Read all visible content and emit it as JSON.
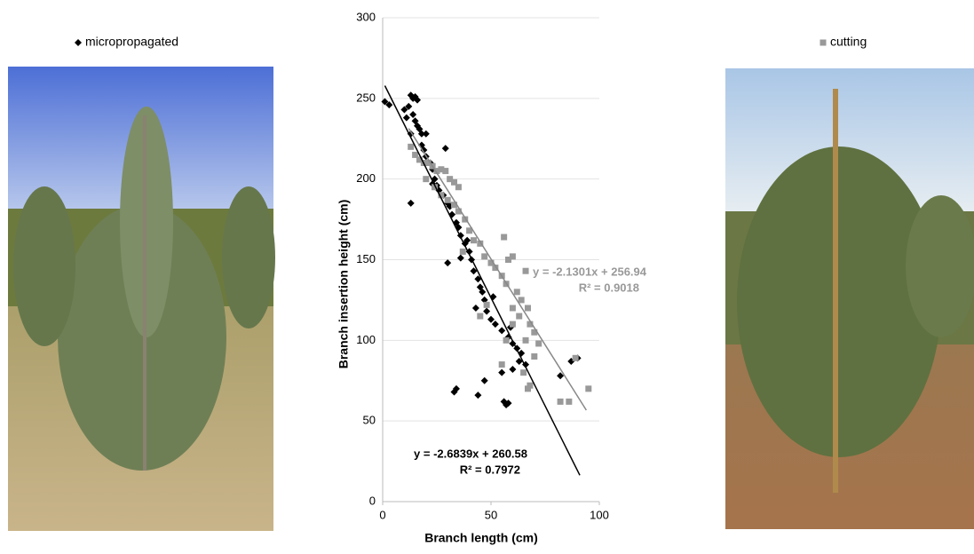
{
  "chart_data": {
    "type": "scatter",
    "xlabel": "Branch length (cm)",
    "ylabel": "Branch insertion height (cm)",
    "xlim": [
      0,
      100
    ],
    "xticks": [
      0,
      50,
      100
    ],
    "ylim": [
      0,
      300
    ],
    "yticks": [
      0,
      50,
      100,
      150,
      200,
      250,
      300
    ],
    "grid": true,
    "series": [
      {
        "name": "micropropagated",
        "color": "#000000",
        "marker": "diamond",
        "x": [
          1,
          3,
          10,
          13,
          14,
          15,
          16,
          12,
          14,
          15,
          16,
          17,
          18,
          13,
          20,
          11,
          18,
          19,
          20,
          22,
          23,
          24,
          25,
          26,
          28,
          30,
          31,
          32,
          34,
          35,
          36,
          38,
          40,
          41,
          30,
          42,
          44,
          45,
          46,
          47,
          43,
          48,
          50,
          52,
          55,
          58,
          60,
          62,
          64,
          66,
          60,
          55,
          33,
          34,
          44,
          47,
          56,
          57,
          58,
          63,
          87,
          90,
          82,
          13,
          29,
          23,
          36,
          39,
          51,
          59
        ],
        "values": [
          248,
          246,
          243,
          252,
          250,
          251,
          249,
          245,
          240,
          236,
          233,
          231,
          228,
          228,
          228,
          238,
          221,
          218,
          214,
          210,
          206,
          200,
          196,
          193,
          190,
          185,
          183,
          178,
          173,
          170,
          165,
          160,
          155,
          150,
          148,
          143,
          138,
          133,
          130,
          125,
          120,
          118,
          113,
          110,
          106,
          102,
          98,
          95,
          92,
          85,
          82,
          80,
          68,
          70,
          66,
          75,
          62,
          60,
          61,
          87,
          87,
          89,
          78,
          185,
          219,
          197,
          151,
          162,
          127,
          108
        ],
        "trendline": {
          "slope": -2.6839,
          "intercept": 260.58,
          "x_start": 1,
          "x_end": 91
        },
        "equation": "y = -2.6839x + 260.58",
        "r2": "R² = 0.7972"
      },
      {
        "name": "cutting",
        "color": "#999999",
        "marker": "square",
        "x": [
          13,
          15,
          17,
          19,
          21,
          23,
          25,
          27,
          29,
          31,
          33,
          35,
          20,
          24,
          27,
          30,
          33,
          35,
          38,
          40,
          42,
          45,
          37,
          47,
          50,
          52,
          55,
          57,
          58,
          60,
          56,
          62,
          64,
          66,
          60,
          63,
          67,
          68,
          70,
          66,
          72,
          65,
          68,
          67,
          82,
          86,
          89,
          95,
          55,
          45,
          48,
          70,
          57,
          60
        ],
        "values": [
          220,
          215,
          212,
          210,
          210,
          208,
          205,
          206,
          205,
          200,
          198,
          195,
          200,
          195,
          190,
          187,
          184,
          180,
          175,
          168,
          162,
          160,
          155,
          152,
          148,
          145,
          140,
          135,
          150,
          152,
          164,
          130,
          125,
          143,
          120,
          115,
          120,
          110,
          105,
          100,
          98,
          80,
          72,
          70,
          62,
          62,
          89,
          70,
          85,
          115,
          122,
          90,
          100,
          110
        ],
        "trendline": {
          "slope": -2.1301,
          "intercept": 256.94,
          "x_start": 12,
          "x_end": 94
        },
        "equation": "y = -2.1301x + 256.94",
        "r2": "R² = 0.9018"
      }
    ]
  }
}
